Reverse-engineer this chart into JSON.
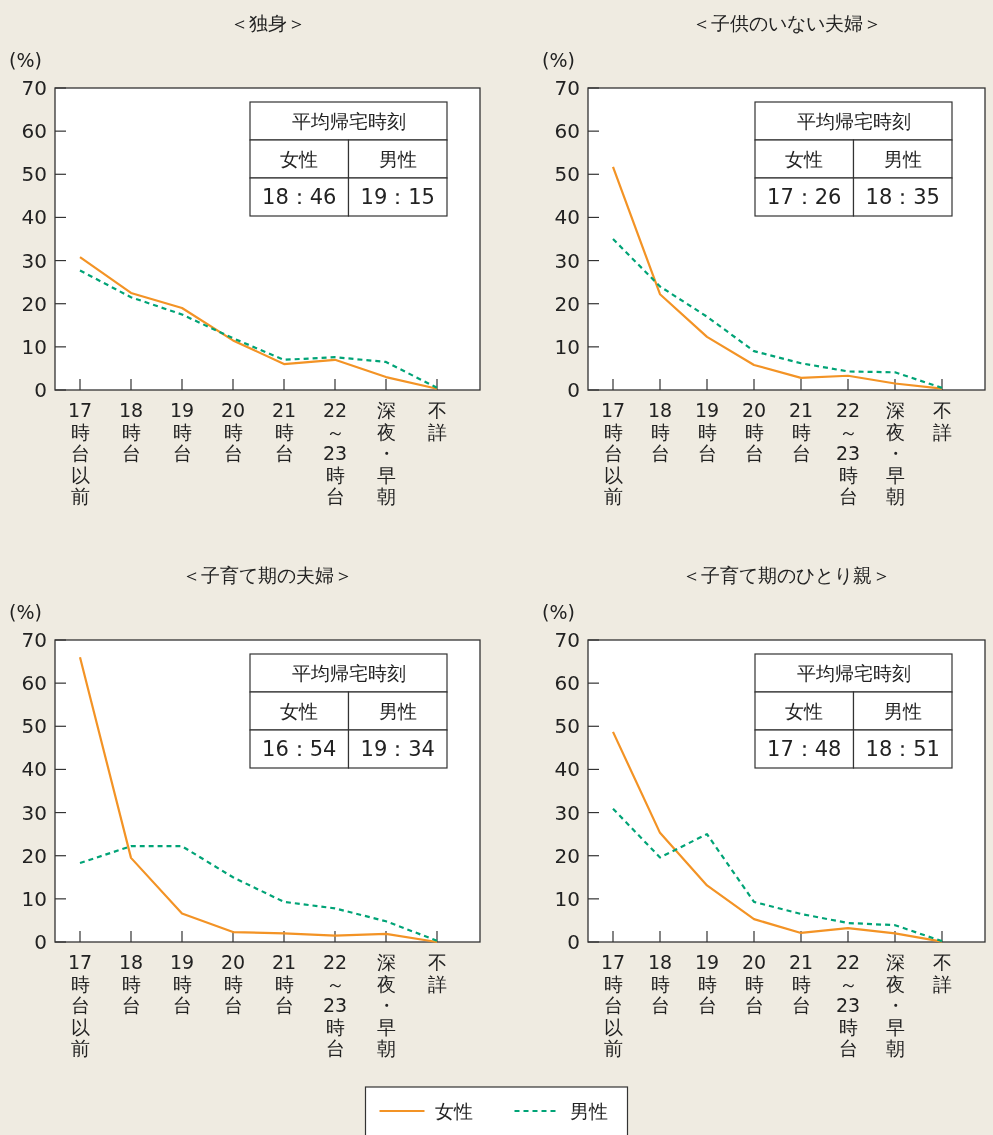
{
  "chart_data": [
    {
      "type": "line",
      "title": "＜独身＞",
      "ylabel": "(%)",
      "categories": [
        "17時台以前",
        "18時台",
        "19時台",
        "20時台",
        "21時台",
        "22～23時台",
        "深夜・早朝",
        "不詳"
      ],
      "ylim": [
        0,
        70
      ],
      "yticks": [
        0,
        10,
        20,
        30,
        40,
        50,
        60,
        70
      ],
      "grid": false,
      "legend": "bottom",
      "series": [
        {
          "name": "女性",
          "color": "#f39325",
          "line_style": "solid",
          "values": [
            30.8,
            22.5,
            19,
            11.5,
            6,
            7,
            3,
            0.3
          ]
        },
        {
          "name": "男性",
          "color": "#00a376",
          "line_style": "dashed",
          "values": [
            27.7,
            21.5,
            17.5,
            12,
            7,
            7.6,
            6.5,
            0.5
          ]
        }
      ],
      "annotations": [
        "平均帰宅時刻",
        "女性",
        "男性",
        "18：46",
        "19：15"
      ]
    },
    {
      "type": "line",
      "title": "＜子供のいない夫婦＞",
      "ylabel": "(%)",
      "categories": [
        "17時台以前",
        "18時台",
        "19時台",
        "20時台",
        "21時台",
        "22～23時台",
        "深夜・早朝",
        "不詳"
      ],
      "ylim": [
        0,
        70
      ],
      "yticks": [
        0,
        10,
        20,
        30,
        40,
        50,
        60,
        70
      ],
      "grid": false,
      "series": [
        {
          "color": "#f39325",
          "line_style": "solid",
          "values": [
            51.7,
            22.2,
            12.3,
            5.8,
            2.8,
            3.3,
            1.5,
            0.3
          ]
        },
        {
          "color": "#00a376",
          "line_style": "dashed",
          "values": [
            35,
            24,
            17,
            9,
            6.2,
            4.3,
            4.1,
            0.5
          ]
        }
      ],
      "annotations": [
        "平均帰宅時刻",
        "女性",
        "男性",
        "17：26",
        "18：35"
      ]
    },
    {
      "type": "line",
      "title": "＜子育て期の夫婦＞",
      "ylabel": "(%)",
      "categories": [
        "17時台以前",
        "18時台",
        "19時台",
        "20時台",
        "21時台",
        "22～23時台",
        "深夜・早朝",
        "不詳"
      ],
      "ylim": [
        0,
        70
      ],
      "yticks": [
        0,
        10,
        20,
        30,
        40,
        50,
        60,
        70
      ],
      "grid": false,
      "series": [
        {
          "color": "#f39325",
          "line_style": "solid",
          "values": [
            66,
            19.5,
            6.6,
            2.3,
            2.0,
            1.5,
            1.9,
            0
          ]
        },
        {
          "color": "#00a376",
          "line_style": "dashed",
          "values": [
            18.3,
            22.2,
            22.2,
            15,
            9.3,
            7.8,
            4.8,
            0.3
          ]
        }
      ],
      "annotations": [
        "平均帰宅時刻",
        "女性",
        "男性",
        "16：54",
        "19：34"
      ]
    },
    {
      "type": "line",
      "title": "＜子育て期のひとり親＞",
      "ylabel": "(%)",
      "categories": [
        "17時台以前",
        "18時台",
        "19時台",
        "20時台",
        "21時台",
        "22～23時台",
        "深夜・早朝",
        "不詳"
      ],
      "ylim": [
        0,
        70
      ],
      "yticks": [
        0,
        10,
        20,
        30,
        40,
        50,
        60,
        70
      ],
      "grid": false,
      "series": [
        {
          "color": "#f39325",
          "line_style": "solid",
          "values": [
            48.7,
            25.3,
            13.1,
            5.3,
            2.1,
            3.2,
            2,
            0.1
          ]
        },
        {
          "color": "#00a376",
          "line_style": "dashed",
          "values": [
            30.9,
            19.6,
            25,
            9.3,
            6.5,
            4.4,
            3.9,
            0.2
          ]
        }
      ],
      "annotations": [
        "平均帰宅時刻",
        "女性",
        "男性",
        "17：48",
        "18：51"
      ]
    }
  ]
}
